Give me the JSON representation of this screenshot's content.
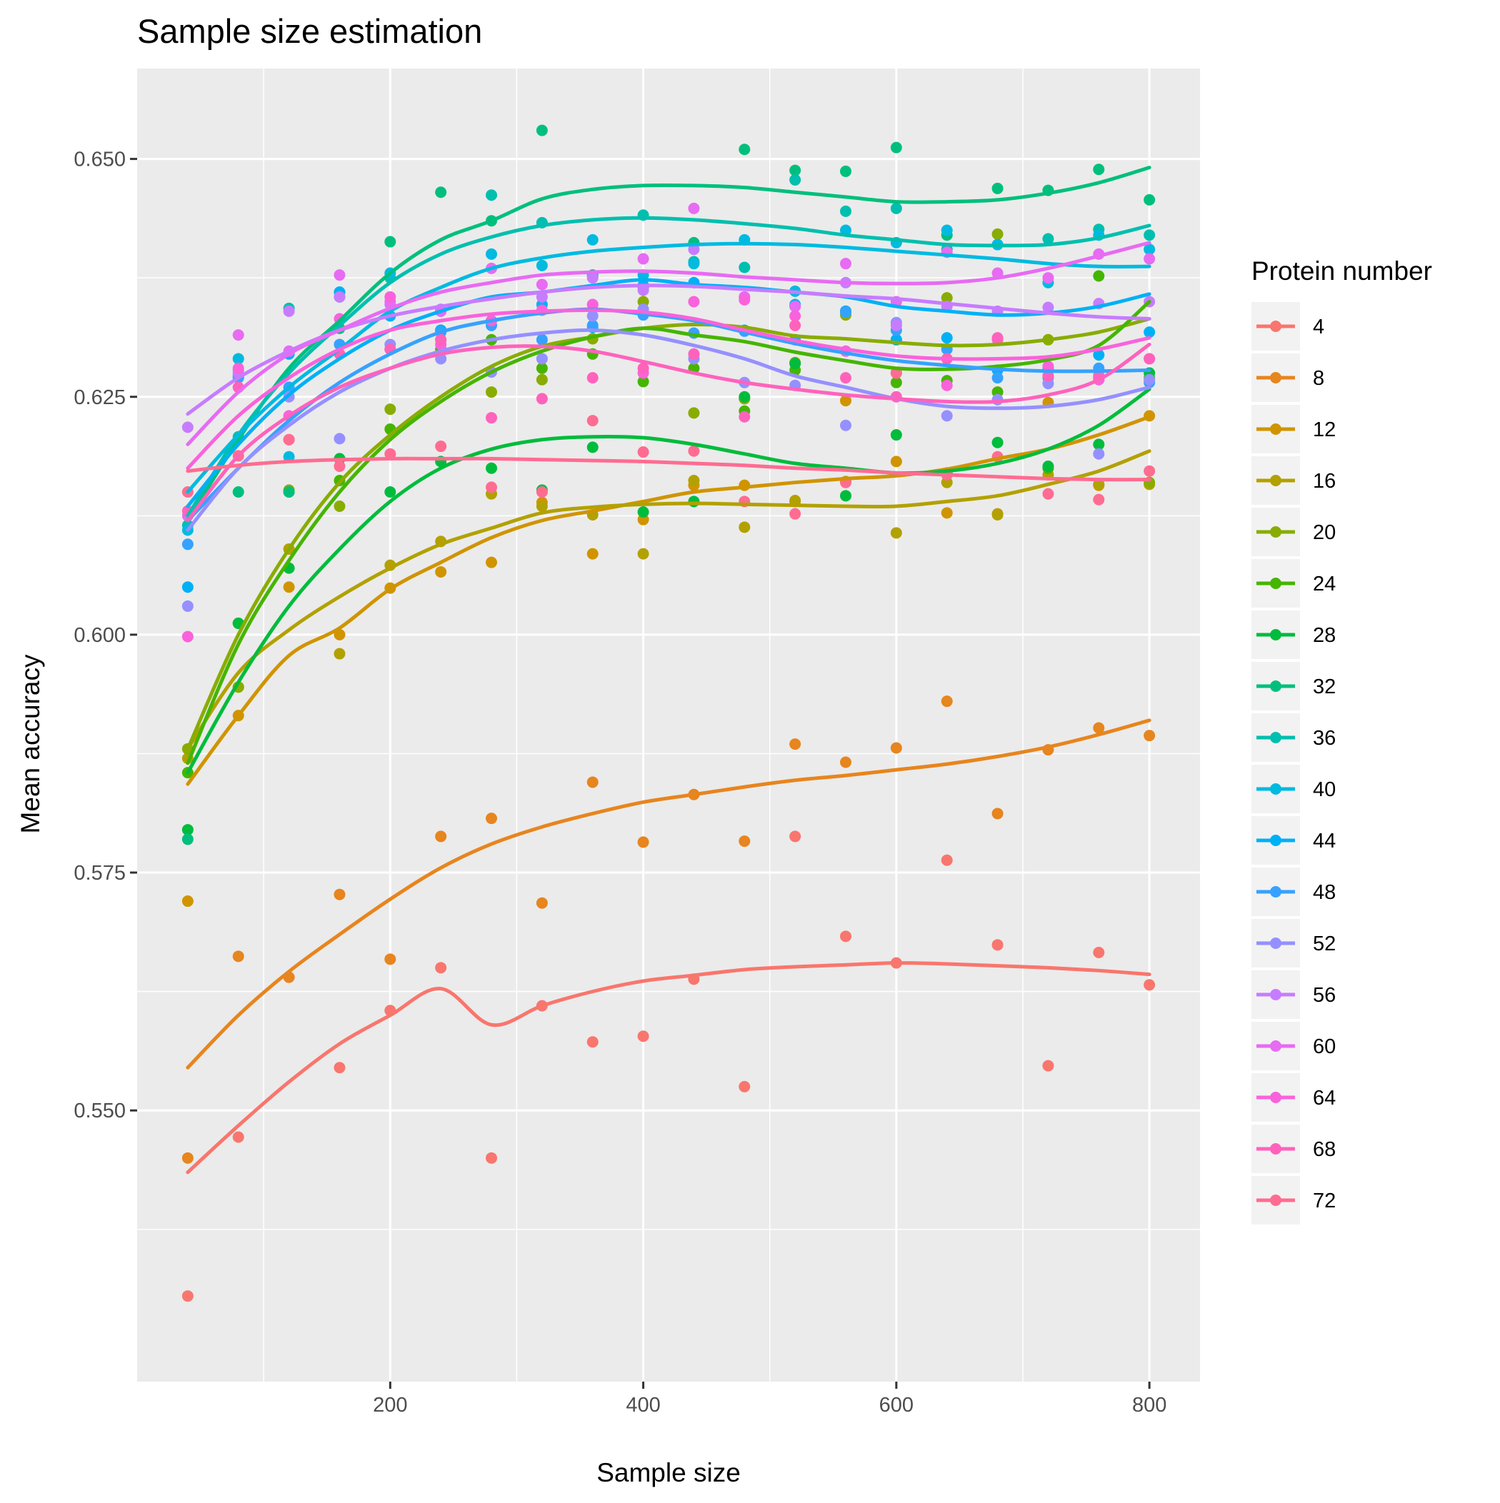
{
  "chart_data": {
    "type": "scatter",
    "title": "Sample size estimation",
    "xlabel": "Sample size",
    "ylabel": "Mean accuracy",
    "xlim": [
      0,
      840
    ],
    "ylim": [
      0.5215,
      0.6595
    ],
    "x_ticks": [
      200,
      400,
      600,
      800
    ],
    "x_tick_labels": [
      "200",
      "400",
      "600",
      "800"
    ],
    "y_ticks": [
      0.55,
      0.575,
      0.6,
      0.625,
      0.65
    ],
    "y_tick_labels": [
      "0.550",
      "0.575",
      "0.600",
      "0.625",
      "0.650"
    ],
    "grid": true,
    "legend_title": "Protein number",
    "legend_position": "right",
    "x": [
      40,
      80,
      120,
      160,
      200,
      240,
      280,
      320,
      360,
      400,
      440,
      480,
      520,
      560,
      600,
      640,
      680,
      720,
      760,
      800
    ],
    "series": [
      {
        "name": "4",
        "color": "#F8766D",
        "values": [
          0.5305,
          0.5472,
          0.564,
          0.5545,
          0.5605,
          0.565,
          0.545,
          0.561,
          0.5572,
          0.5578,
          0.5638,
          0.5525,
          0.5788,
          0.5683,
          0.5655,
          0.5763,
          0.5674,
          0.5547,
          0.5666,
          0.5632
        ],
        "fit": [
          0.5435,
          0.5484,
          0.553,
          0.557,
          0.56,
          0.5628,
          0.559,
          0.561,
          0.5625,
          0.5636,
          0.5642,
          0.5648,
          0.5651,
          0.5653,
          0.5655,
          0.5654,
          0.5652,
          0.565,
          0.5647,
          0.5643
        ]
      },
      {
        "name": "8",
        "color": "#E7851E",
        "values": [
          0.545,
          0.5662,
          0.564,
          0.5727,
          0.5659,
          0.5788,
          0.5807,
          0.5718,
          0.5845,
          0.5782,
          0.5832,
          0.5783,
          0.5885,
          0.5866,
          0.5881,
          0.593,
          0.5812,
          0.5879,
          0.5902,
          0.5894
        ],
        "fit": [
          0.5545,
          0.56,
          0.5646,
          0.5685,
          0.5722,
          0.5755,
          0.578,
          0.5798,
          0.5812,
          0.5824,
          0.5832,
          0.584,
          0.5847,
          0.5852,
          0.5858,
          0.5864,
          0.5872,
          0.5882,
          0.5895,
          0.591
        ]
      },
      {
        "name": "12",
        "color": "#D09400",
        "values": [
          0.572,
          0.5915,
          0.605,
          0.6,
          0.6049,
          0.6066,
          0.6076,
          0.6139,
          0.6085,
          0.6121,
          0.6157,
          0.6157,
          0.614,
          0.6246,
          0.6182,
          0.6128,
          0.6127,
          0.6244,
          0.6157,
          0.623
        ],
        "fit": [
          0.5843,
          0.5915,
          0.5978,
          0.6007,
          0.6048,
          0.6076,
          0.6102,
          0.612,
          0.613,
          0.614,
          0.615,
          0.6155,
          0.616,
          0.6164,
          0.6167,
          0.6174,
          0.6185,
          0.6195,
          0.621,
          0.6229
        ]
      },
      {
        "name": "16",
        "color": "#B2A100",
        "values": [
          0.587,
          0.5945,
          0.609,
          0.598,
          0.6073,
          0.6098,
          0.6148,
          0.6135,
          0.6126,
          0.6085,
          0.6162,
          0.6113,
          0.6141,
          0.6161,
          0.6107,
          0.616,
          0.6126,
          0.6168,
          0.6158,
          0.6158
        ],
        "fit": [
          0.588,
          0.596,
          0.6005,
          0.604,
          0.607,
          0.6095,
          0.6112,
          0.6128,
          0.6134,
          0.6137,
          0.6138,
          0.6137,
          0.6136,
          0.6135,
          0.6135,
          0.614,
          0.6146,
          0.6158,
          0.6172,
          0.6193
        ]
      },
      {
        "name": "20",
        "color": "#89AC00",
        "values": [
          0.588,
          0.5945,
          0.6152,
          0.6135,
          0.6237,
          0.631,
          0.6255,
          0.6268,
          0.6311,
          0.635,
          0.6233,
          0.6248,
          0.6286,
          0.6336,
          0.631,
          0.6354,
          0.6421,
          0.631,
          0.627,
          0.616
        ],
        "fit": [
          0.588,
          0.6,
          0.609,
          0.616,
          0.621,
          0.625,
          0.6282,
          0.6303,
          0.6313,
          0.6322,
          0.6326,
          0.6323,
          0.6314,
          0.6311,
          0.6307,
          0.6304,
          0.6305,
          0.631,
          0.6318,
          0.6332
        ]
      },
      {
        "name": "24",
        "color": "#45B500",
        "values": [
          0.5855,
          0.6012,
          0.615,
          0.6162,
          0.6216,
          0.63,
          0.631,
          0.628,
          0.6295,
          0.6266,
          0.628,
          0.6235,
          0.6278,
          0.634,
          0.6265,
          0.6267,
          0.6255,
          0.6175,
          0.6377,
          0.627
        ],
        "fit": [
          0.5865,
          0.599,
          0.6078,
          0.615,
          0.6205,
          0.6245,
          0.6276,
          0.6298,
          0.6313,
          0.6322,
          0.6315,
          0.6308,
          0.6297,
          0.6288,
          0.628,
          0.6279,
          0.6282,
          0.6289,
          0.6304,
          0.635
        ]
      },
      {
        "name": "28",
        "color": "#00BC3C",
        "values": [
          0.5795,
          0.6012,
          0.607,
          0.6185,
          0.615,
          0.6182,
          0.6175,
          0.6152,
          0.6197,
          0.6129,
          0.614,
          0.625,
          0.6285,
          0.6146,
          0.621,
          0.617,
          0.6202,
          0.6177,
          0.62,
          0.6275
        ],
        "fit": [
          0.5855,
          0.595,
          0.603,
          0.609,
          0.614,
          0.6175,
          0.6195,
          0.6205,
          0.6208,
          0.6207,
          0.62,
          0.619,
          0.618,
          0.6175,
          0.617,
          0.6172,
          0.618,
          0.6195,
          0.622,
          0.6258
        ]
      },
      {
        "name": "32",
        "color": "#00BF7D",
        "values": [
          0.5785,
          0.615,
          0.615,
          0.6322,
          0.6413,
          0.6465,
          0.6435,
          0.653,
          0.6376,
          0.6365,
          0.6412,
          0.651,
          0.6488,
          0.6487,
          0.6512,
          0.642,
          0.6469,
          0.6467,
          0.6489,
          0.6457
        ],
        "fit": [
          0.612,
          0.6205,
          0.628,
          0.633,
          0.638,
          0.6415,
          0.6435,
          0.6458,
          0.6468,
          0.6472,
          0.6472,
          0.647,
          0.6465,
          0.646,
          0.6455,
          0.6455,
          0.6457,
          0.6464,
          0.6475,
          0.6491
        ]
      },
      {
        "name": "36",
        "color": "#00BFAE",
        "values": [
          0.6115,
          0.6208,
          0.6343,
          0.6355,
          0.6375,
          0.634,
          0.6462,
          0.6433,
          0.6378,
          0.6441,
          0.6392,
          0.6386,
          0.6478,
          0.6445,
          0.6448,
          0.6405,
          0.641,
          0.6416,
          0.6426,
          0.642
        ],
        "fit": [
          0.6125,
          0.621,
          0.6275,
          0.6325,
          0.637,
          0.64,
          0.6418,
          0.643,
          0.6436,
          0.6438,
          0.6436,
          0.6432,
          0.6427,
          0.642,
          0.6415,
          0.641,
          0.6409,
          0.641,
          0.6417,
          0.643
        ]
      },
      {
        "name": "40",
        "color": "#00BAE0",
        "values": [
          0.611,
          0.629,
          0.6187,
          0.636,
          0.638,
          0.632,
          0.64,
          0.6388,
          0.6415,
          0.6378,
          0.639,
          0.6415,
          0.6361,
          0.6425,
          0.6412,
          0.6425,
          0.641,
          0.637,
          0.642,
          0.6405
        ],
        "fit": [
          0.615,
          0.621,
          0.626,
          0.63,
          0.634,
          0.6365,
          0.6385,
          0.6396,
          0.6403,
          0.6407,
          0.641,
          0.6411,
          0.641,
          0.6407,
          0.6403,
          0.6399,
          0.6395,
          0.639,
          0.6387,
          0.6387
        ]
      },
      {
        "name": "44",
        "color": "#00B0F6",
        "values": [
          0.605,
          0.6272,
          0.6295,
          0.636,
          0.6335,
          0.632,
          0.633,
          0.6347,
          0.6323,
          0.6367,
          0.637,
          0.632,
          0.6347,
          0.634,
          0.631,
          0.6312,
          0.6278,
          0.628,
          0.6294,
          0.6318
        ],
        "fit": [
          0.6135,
          0.62,
          0.6252,
          0.629,
          0.632,
          0.634,
          0.6355,
          0.636,
          0.6367,
          0.6373,
          0.6368,
          0.6365,
          0.636,
          0.6355,
          0.6345,
          0.634,
          0.6336,
          0.6338,
          0.6345,
          0.6358
        ]
      },
      {
        "name": "48",
        "color": "#35A2FF",
        "values": [
          0.6095,
          0.627,
          0.626,
          0.6305,
          0.63,
          0.6318,
          0.6325,
          0.631,
          0.6325,
          0.6336,
          0.6317,
          0.6319,
          0.631,
          0.6339,
          0.632,
          0.63,
          0.627,
          0.627,
          0.628,
          0.6265
        ],
        "fit": [
          0.612,
          0.6175,
          0.6225,
          0.6265,
          0.6295,
          0.6318,
          0.633,
          0.6338,
          0.6342,
          0.6337,
          0.633,
          0.6318,
          0.6306,
          0.6296,
          0.6288,
          0.6283,
          0.6279,
          0.6277,
          0.6277,
          0.6278
        ]
      },
      {
        "name": "52",
        "color": "#9590FF",
        "values": [
          0.603,
          0.6278,
          0.625,
          0.6206,
          0.6305,
          0.629,
          0.6276,
          0.629,
          0.6335,
          0.6342,
          0.629,
          0.6265,
          0.6262,
          0.622,
          0.6328,
          0.623,
          0.6247,
          0.6264,
          0.619,
          0.6268
        ],
        "fit": [
          0.611,
          0.6175,
          0.622,
          0.6255,
          0.628,
          0.6298,
          0.631,
          0.6317,
          0.632,
          0.6315,
          0.6304,
          0.629,
          0.6272,
          0.626,
          0.6248,
          0.624,
          0.6238,
          0.624,
          0.6247,
          0.626
        ]
      },
      {
        "name": "56",
        "color": "#C77CFF",
        "values": [
          0.6218,
          0.6275,
          0.634,
          0.6355,
          0.6347,
          0.6342,
          0.633,
          0.6355,
          0.6375,
          0.6362,
          0.6405,
          0.6355,
          0.6345,
          0.637,
          0.6325,
          0.6345,
          0.634,
          0.6344,
          0.6348,
          0.635
        ],
        "fit": [
          0.6232,
          0.627,
          0.6298,
          0.632,
          0.6335,
          0.6345,
          0.6353,
          0.636,
          0.6365,
          0.6367,
          0.6366,
          0.6363,
          0.636,
          0.6356,
          0.6353,
          0.6348,
          0.6343,
          0.6338,
          0.6334,
          0.6332
        ]
      },
      {
        "name": "60",
        "color": "#E76BF3",
        "values": [
          0.6125,
          0.6315,
          0.6298,
          0.6378,
          0.635,
          0.634,
          0.6385,
          0.6368,
          0.6347,
          0.6395,
          0.6448,
          0.6355,
          0.6345,
          0.639,
          0.635,
          0.6402,
          0.638,
          0.6375,
          0.64,
          0.6395
        ],
        "fit": [
          0.62,
          0.6255,
          0.6295,
          0.632,
          0.6343,
          0.636,
          0.637,
          0.6378,
          0.6381,
          0.6382,
          0.638,
          0.6376,
          0.6373,
          0.637,
          0.6369,
          0.637,
          0.6375,
          0.6385,
          0.6398,
          0.6412
        ]
      },
      {
        "name": "64",
        "color": "#FA62DB",
        "values": [
          0.5998,
          0.628,
          0.623,
          0.6332,
          0.6355,
          0.6305,
          0.633,
          0.6341,
          0.6347,
          0.6275,
          0.635,
          0.6352,
          0.6335,
          0.6298,
          0.6275,
          0.6262,
          0.631,
          0.6282,
          0.6268,
          0.629
        ],
        "fit": [
          0.6175,
          0.623,
          0.627,
          0.63,
          0.632,
          0.633,
          0.6337,
          0.634,
          0.6341,
          0.6339,
          0.6332,
          0.632,
          0.6309,
          0.63,
          0.6293,
          0.629,
          0.629,
          0.6292,
          0.63,
          0.6312
        ]
      },
      {
        "name": "68",
        "color": "#FF62BC",
        "values": [
          0.613,
          0.626,
          0.6205,
          0.6295,
          0.63,
          0.631,
          0.6228,
          0.6248,
          0.627,
          0.628,
          0.6295,
          0.6229,
          0.6325,
          0.627,
          0.625,
          0.629,
          0.6312,
          0.6272,
          0.6272,
          0.629
        ],
        "fit": [
          0.612,
          0.6188,
          0.623,
          0.626,
          0.628,
          0.6295,
          0.6302,
          0.6303,
          0.6298,
          0.6287,
          0.6275,
          0.6265,
          0.6258,
          0.6252,
          0.6248,
          0.6245,
          0.6245,
          0.6252,
          0.6268,
          0.6305
        ]
      },
      {
        "name": "72",
        "color": "#FF6C91",
        "values": [
          0.615,
          0.6188,
          0.6205,
          0.6177,
          0.619,
          0.6198,
          0.6155,
          0.615,
          0.6225,
          0.6192,
          0.6193,
          0.614,
          0.6127,
          0.616,
          0.6275,
          0.6168,
          0.6187,
          0.6148,
          0.6142,
          0.6172
        ],
        "fit": [
          0.6172,
          0.6178,
          0.6182,
          0.6184,
          0.6185,
          0.6185,
          0.6185,
          0.6184,
          0.6183,
          0.6182,
          0.618,
          0.6178,
          0.6175,
          0.6173,
          0.617,
          0.6168,
          0.6166,
          0.6164,
          0.6163,
          0.6163
        ]
      }
    ]
  }
}
